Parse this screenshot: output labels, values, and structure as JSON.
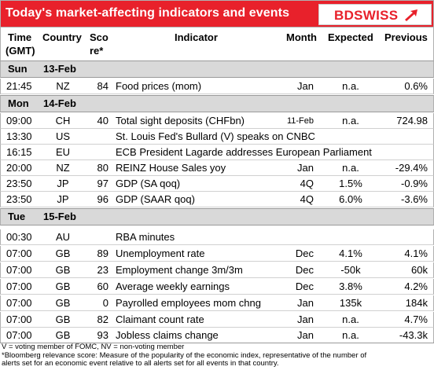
{
  "header": {
    "title": "Today's market-affecting indicators and events",
    "logo": "BDSWISS"
  },
  "columns": {
    "time": [
      "Time",
      "(GMT)"
    ],
    "country": "Country",
    "score": [
      "Sco",
      "re*"
    ],
    "indicator": "Indicator",
    "month": "Month",
    "expected": "Expected",
    "previous": "Previous"
  },
  "days": [
    {
      "dow": "Sun",
      "date": "13-Feb"
    },
    {
      "dow": "Mon",
      "date": "14-Feb"
    },
    {
      "dow": "Tue",
      "date": "15-Feb"
    }
  ],
  "rows": [
    {
      "time": "21:45",
      "country": "NZ",
      "score": "84",
      "indicator": "Food prices (mom)",
      "month": "Jan",
      "expected": "n.a.",
      "previous": "0.6%"
    },
    {
      "time": "09:00",
      "country": "CH",
      "score": "40",
      "indicator": "Total sight deposits (CHFbn)",
      "month": "11-Feb",
      "expected": "n.a.",
      "previous": "724.98"
    },
    {
      "time": "13:30",
      "country": "US",
      "score": "",
      "indicator": "St. Louis Fed's Bullard (V) speaks on CNBC",
      "month": "",
      "expected": "",
      "previous": ""
    },
    {
      "time": "16:15",
      "country": "EU",
      "score": "",
      "indicator": "ECB President Lagarde addresses European Parliament",
      "month": "",
      "expected": "",
      "previous": ""
    },
    {
      "time": "20:00",
      "country": "NZ",
      "score": "80",
      "indicator": "REINZ House Sales yoy",
      "month": "Jan",
      "expected": "n.a.",
      "previous": "-29.4%"
    },
    {
      "time": "23:50",
      "country": "JP",
      "score": "97",
      "indicator": "GDP (SA qoq)",
      "month": "4Q",
      "expected": "1.5%",
      "previous": "-0.9%"
    },
    {
      "time": "23:50",
      "country": "JP",
      "score": "96",
      "indicator": "GDP (SAAR qoq)",
      "month": "4Q",
      "expected": "6.0%",
      "previous": "-3.6%"
    },
    {
      "time": "00:30",
      "country": "AU",
      "score": "",
      "indicator": "RBA minutes",
      "month": "",
      "expected": "",
      "previous": ""
    },
    {
      "time": "07:00",
      "country": "GB",
      "score": "89",
      "indicator": "Unemployment rate",
      "month": "Dec",
      "expected": "4.1%",
      "previous": "4.1%"
    },
    {
      "time": "07:00",
      "country": "GB",
      "score": "23",
      "indicator": "Employment change 3m/3m",
      "month": "Dec",
      "expected": "-50k",
      "previous": "60k"
    },
    {
      "time": "07:00",
      "country": "GB",
      "score": "60",
      "indicator": "Average weekly earnings",
      "month": "Dec",
      "expected": "3.8%",
      "previous": "4.2%"
    },
    {
      "time": "07:00",
      "country": "GB",
      "score": "0",
      "indicator": "Payrolled employees mom chng",
      "month": "Jan",
      "expected": "135k",
      "previous": "184k"
    },
    {
      "time": "07:00",
      "country": "GB",
      "score": "82",
      "indicator": "Claimant count rate",
      "month": "Jan",
      "expected": "n.a.",
      "previous": "4.7%"
    },
    {
      "time": "07:00",
      "country": "GB",
      "score": "93",
      "indicator": "Jobless claims change",
      "month": "Jan",
      "expected": "n.a.",
      "previous": "-43.3k"
    }
  ],
  "footer": {
    "line1": "V = voting member of FOMC, NV = non-voting member",
    "line2": "*Bloomberg relevance score:  Measure of the popularity of the economic index, representative of the number of",
    "line3": "alerts set for an economic event relative to all alerts set for all events in that country."
  },
  "colors": {
    "header_bg": "#e8212b",
    "day_bg": "#d9d9d9"
  }
}
